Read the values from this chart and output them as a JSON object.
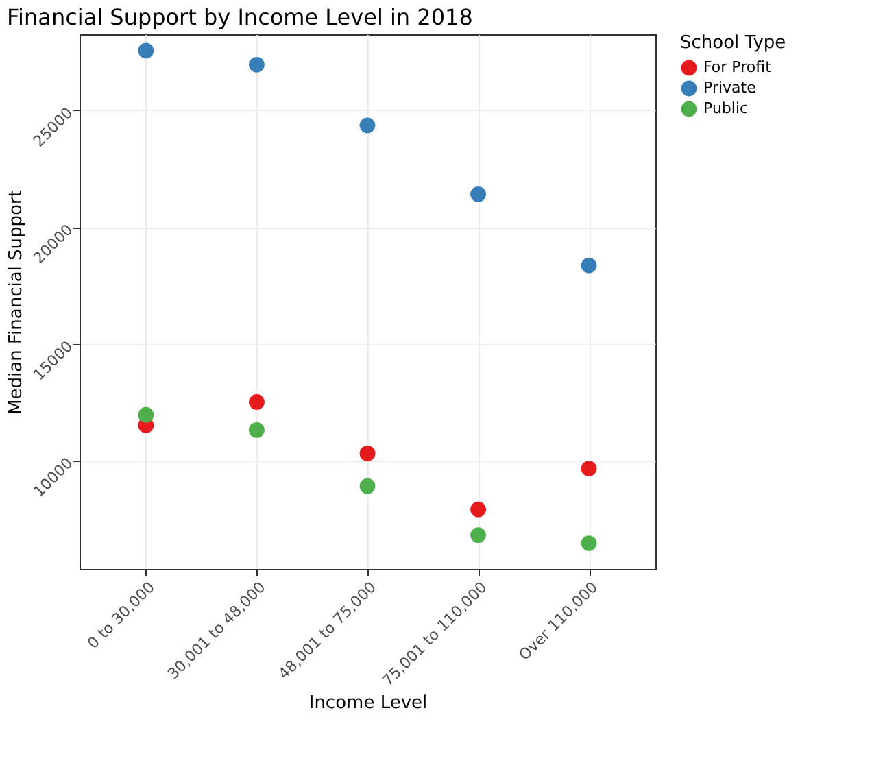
{
  "chart_data": {
    "type": "scatter",
    "title": "Financial Support by Income Level in 2018",
    "xlabel": "Income Level",
    "ylabel": "Median Financial Support",
    "legend_title": "School Type",
    "categories": [
      "0 to 30,000",
      "30,001 to 48,000",
      "48,001 to 75,000",
      "75,001 to 110,000",
      "Over 110,000"
    ],
    "series": [
      {
        "name": "For Profit",
        "color": "#e41a1c",
        "values": [
          11500,
          12500,
          10300,
          7900,
          9650
        ]
      },
      {
        "name": "Private",
        "color": "#377eb8",
        "values": [
          27550,
          26950,
          24350,
          21400,
          18350
        ]
      },
      {
        "name": "Public",
        "color": "#4daf4a",
        "values": [
          11950,
          11300,
          8900,
          6800,
          6450
        ]
      }
    ],
    "ylim": [
      5350,
      28250
    ],
    "yticks": [
      10000,
      15000,
      20000,
      25000
    ],
    "grid": true,
    "legend": "right",
    "marker": "circle"
  }
}
